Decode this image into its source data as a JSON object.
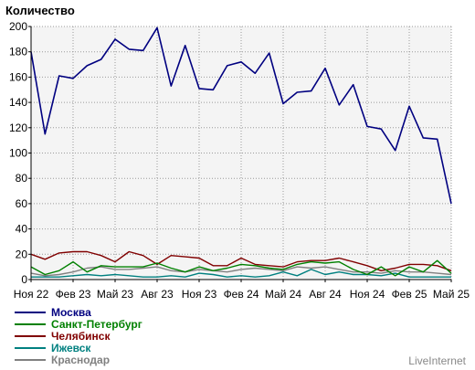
{
  "chart_data": {
    "type": "line",
    "ylabel": "Количество",
    "ylim": [
      0,
      200
    ],
    "yticks": [
      0,
      20,
      40,
      60,
      80,
      100,
      120,
      140,
      160,
      180,
      200
    ],
    "xticks": [
      "Ноя 22",
      "Фев 23",
      "Май 23",
      "Авг 23",
      "Ноя 23",
      "Фев 24",
      "Май 24",
      "Авг 24",
      "Ноя 24",
      "Фев 25",
      "Май 25"
    ],
    "grid": true,
    "legend_position": "bottom-left",
    "series": [
      {
        "name": "Москва",
        "color": "#000080",
        "values": [
          180,
          115,
          161,
          159,
          169,
          174,
          190,
          182,
          181,
          199,
          153,
          185,
          151,
          150,
          169,
          172,
          163,
          179,
          139,
          148,
          149,
          167,
          138,
          154,
          121,
          119,
          102,
          137,
          112,
          111,
          60
        ]
      },
      {
        "name": "Санкт-Петербург",
        "color": "#008000",
        "values": [
          10,
          4,
          7,
          14,
          6,
          11,
          10,
          10,
          10,
          13,
          9,
          6,
          10,
          7,
          9,
          12,
          11,
          9,
          8,
          12,
          14,
          13,
          14,
          8,
          4,
          10,
          3,
          10,
          6,
          15,
          5
        ]
      },
      {
        "name": "Челябинск",
        "color": "#800000",
        "values": [
          20,
          16,
          21,
          22,
          22,
          19,
          14,
          22,
          19,
          12,
          19,
          18,
          17,
          11,
          11,
          17,
          12,
          11,
          10,
          14,
          15,
          15,
          17,
          14,
          11,
          7,
          9,
          12,
          12,
          11,
          7
        ]
      },
      {
        "name": "Ижевск",
        "color": "#008080",
        "values": [
          2,
          2,
          2,
          3,
          4,
          3,
          4,
          3,
          2,
          2,
          3,
          2,
          5,
          4,
          2,
          3,
          2,
          3,
          6,
          3,
          8,
          4,
          6,
          4,
          4,
          3,
          5,
          2,
          2,
          2,
          2
        ]
      },
      {
        "name": "Краснодар",
        "color": "#808080",
        "values": [
          5,
          3,
          4,
          6,
          9,
          10,
          8,
          8,
          9,
          10,
          7,
          6,
          8,
          7,
          6,
          8,
          9,
          8,
          7,
          10,
          9,
          10,
          8,
          6,
          6,
          5,
          7,
          6,
          6,
          5,
          4
        ]
      }
    ]
  },
  "credit": "LiveInternet"
}
